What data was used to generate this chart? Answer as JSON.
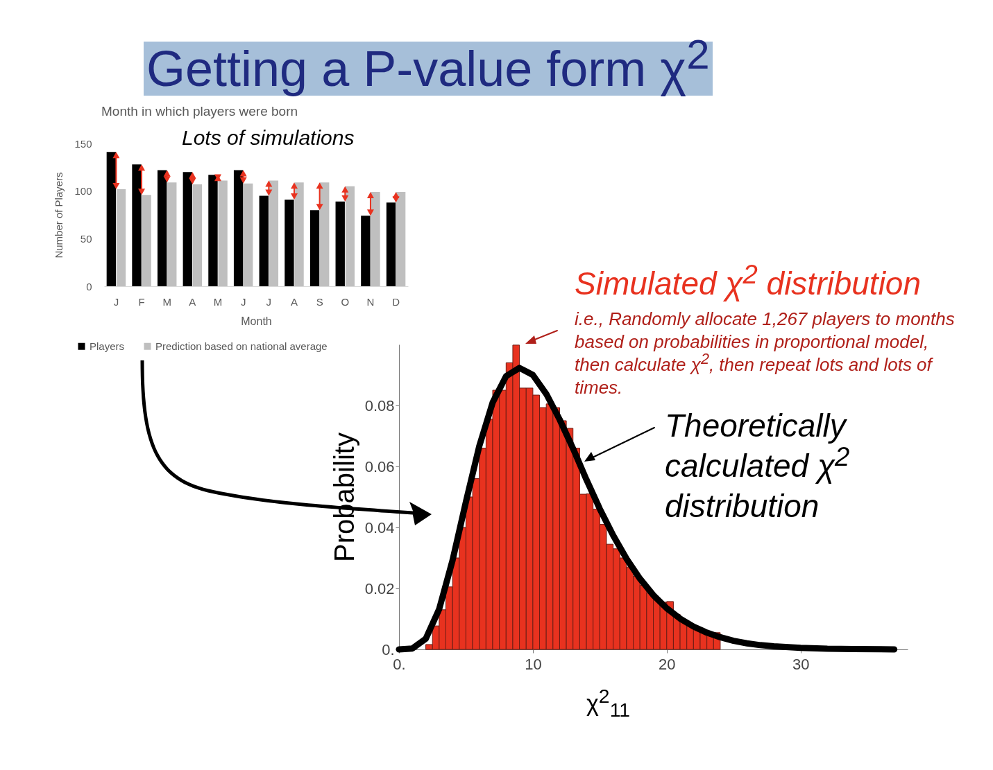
{
  "chart_data": [
    {
      "type": "bar",
      "title": "Getting a P-value form χ$^{2}$",
      "subtitle": "Month in which players were born",
      "categories": [
        "J",
        "F",
        "M",
        "A",
        "M",
        "J",
        "J",
        "A",
        "S",
        "O",
        "N",
        "D"
      ],
      "xlabel": "Month",
      "ylabel": "Number of Players",
      "ylim": [
        0,
        150
      ],
      "yticks": [
        0,
        50,
        100,
        150
      ],
      "legend": "bottom",
      "annotations": [
        "Lots of simulations"
      ],
      "series": [
        {
          "name": "Players",
          "color": "#000000",
          "values": [
            141,
            128,
            122,
            120,
            117,
            122,
            95,
            91,
            80,
            89,
            74,
            88
          ]
        },
        {
          "name": "Prediction based on national average",
          "color": "#bfbfbf",
          "values": [
            102,
            96,
            109,
            107,
            111,
            108,
            111,
            109,
            109,
            105,
            99,
            99
          ]
        }
      ]
    },
    {
      "type": "histogram",
      "xlabel": "χ$^{2}$$_{11}$",
      "ylabel": "Probability",
      "xlim": [
        0,
        38
      ],
      "xticks": [
        {
          "value": 0,
          "label": "0."
        },
        10,
        20,
        30
      ],
      "ylim": [
        0,
        0.1
      ],
      "yticks": [
        {
          "value": 0,
          "label": "0."
        },
        0.02,
        0.04,
        0.06,
        0.08
      ],
      "annotations": [
        "i.e., Randomly allocate 1,267 players to months based on probabilities in proportional model, then calculate χ$^{2}$, then repeat lots and lots of times."
      ],
      "bins": [
        2,
        2.5,
        3,
        3.5,
        4,
        4.5,
        5,
        5.5,
        6,
        6.5,
        7,
        7.5,
        8,
        8.5,
        9,
        9.5,
        10,
        10.5,
        11,
        11.5,
        12,
        12.5,
        13,
        13.5,
        14,
        14.5,
        15,
        15.5,
        16,
        16.5,
        17,
        17.5,
        18,
        18.5,
        19,
        19.5,
        20,
        20.5,
        21,
        21.5,
        22,
        22.5,
        23,
        23.5,
        24,
        24.5,
        25,
        25.5,
        26,
        26.5,
        27,
        27.5,
        28,
        28.5,
        29,
        29.5,
        30
      ],
      "series": [
        {
          "name": "Simulated χ$^{2}$ distribution",
          "type": "histogram",
          "color": "#e8321f",
          "values": [
            0.0016,
            0.0077,
            0.013,
            0.0205,
            0.03,
            0.04,
            0.05,
            0.056,
            0.066,
            0.0755,
            0.085,
            0.085,
            0.094,
            0.0998,
            0.0857,
            0.0857,
            0.0834,
            0.0793,
            0.0805,
            0.0793,
            0.075,
            0.0725,
            0.066,
            0.0509,
            0.051,
            0.046,
            0.041,
            0.0345,
            0.033,
            0.03,
            0.027,
            0.024,
            0.021,
            0.0185,
            0.0165,
            0.0155,
            0.0157,
            0.0115,
            0.0097,
            0.0084,
            0.0072,
            0.0062,
            0.0054,
            0.0055,
            null,
            null,
            null,
            null,
            null,
            null,
            null,
            null,
            null,
            null,
            null,
            null
          ]
        },
        {
          "name": "Theoretically calculated χ$^{2}$ distribution",
          "type": "line",
          "color": "#000000",
          "x": [
            0,
            1,
            2,
            3,
            4,
            5,
            6,
            7,
            8,
            9,
            10,
            11,
            12,
            13,
            14,
            15,
            16,
            17,
            18,
            19,
            20,
            21,
            22,
            23,
            24,
            25,
            26,
            27,
            28,
            30,
            32,
            34,
            37
          ],
          "values": [
            0,
            0.0003,
            0.0035,
            0.0132,
            0.0292,
            0.0484,
            0.0667,
            0.081,
            0.0896,
            0.0923,
            0.09,
            0.0838,
            0.0754,
            0.0659,
            0.0557,
            0.0461,
            0.0374,
            0.0297,
            0.0232,
            0.0178,
            0.0135,
            0.0101,
            0.0075,
            0.0055,
            0.004,
            0.0028,
            0.002,
            0.0014,
            0.001,
            0.0005,
            0.0002,
            0.0001,
            0
          ]
        }
      ]
    }
  ]
}
